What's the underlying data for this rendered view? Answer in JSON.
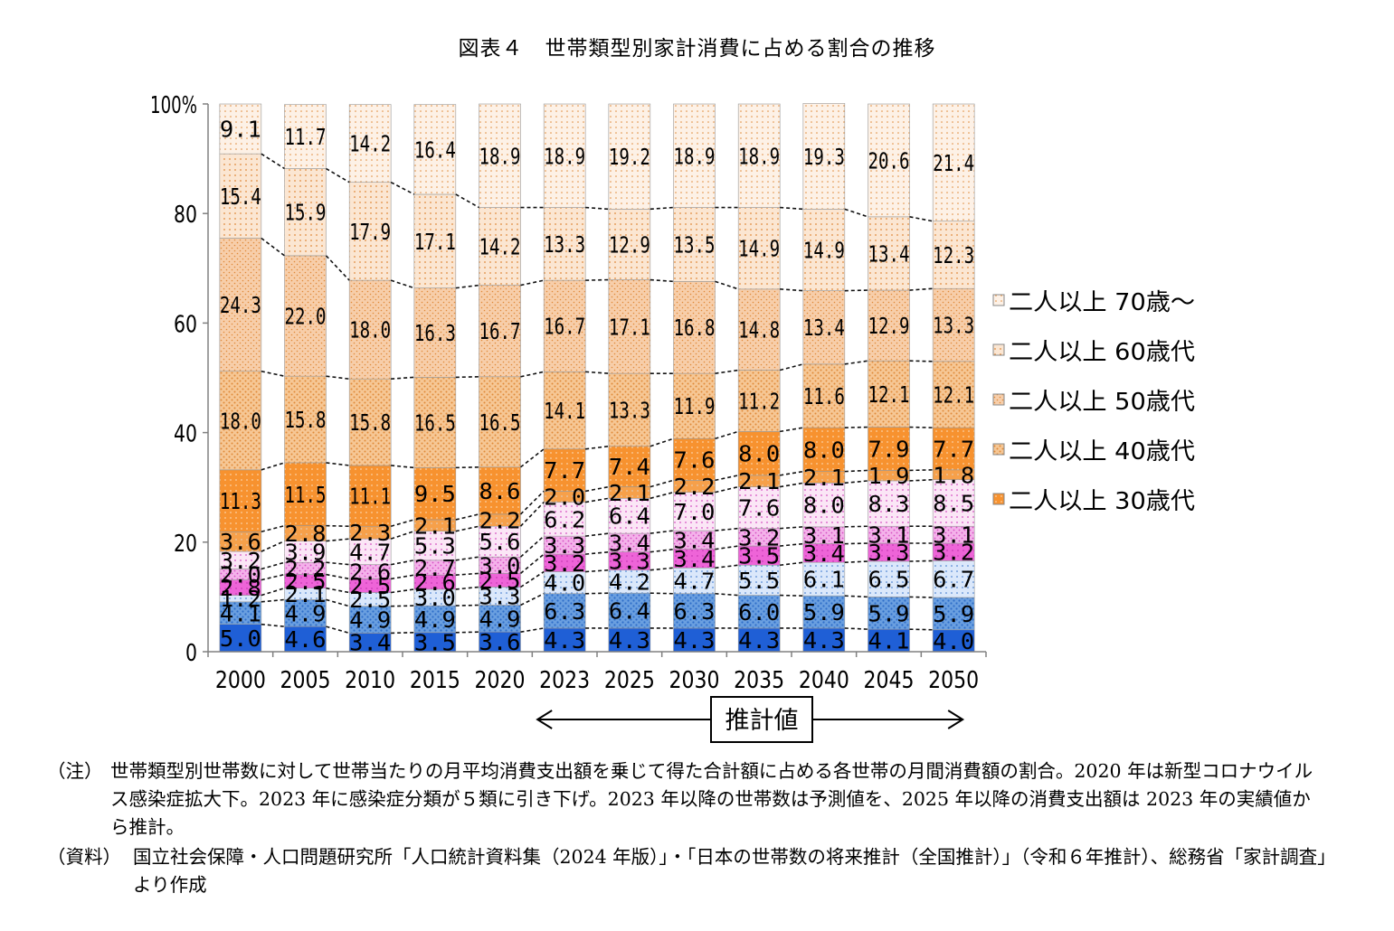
{
  "title": "図表４　世帯類型別家計消費に占める割合の推移",
  "chart_data": {
    "type": "bar",
    "stacked": true,
    "categories": [
      "2000",
      "2005",
      "2010",
      "2015",
      "2020",
      "2023",
      "2025",
      "2030",
      "2035",
      "2040",
      "2045",
      "2050"
    ],
    "y_ticks": [
      "0",
      "20",
      "40",
      "60",
      "80",
      "100%"
    ],
    "ylim": [
      0,
      100
    ],
    "series": [
      {
        "key": "s1",
        "values": [
          5.0,
          4.6,
          3.4,
          3.5,
          3.6,
          4.3,
          4.3,
          4.3,
          4.3,
          4.3,
          4.1,
          4.0
        ],
        "labels": [
          "5.0",
          "4.6",
          "3.4",
          "3.5",
          "3.6",
          "4.3",
          "4.3",
          "4.3",
          "4.3",
          "4.3",
          "4.1",
          "4.0"
        ],
        "color": "#1f5fd6"
      },
      {
        "key": "s2",
        "values": [
          4.1,
          4.9,
          4.9,
          4.9,
          4.9,
          6.3,
          6.4,
          6.3,
          6.0,
          5.9,
          5.9,
          5.9
        ],
        "labels": [
          "4.1",
          "4.9",
          "4.9",
          "4.9",
          "4.9",
          "6.3",
          "6.4",
          "6.3",
          "6.0",
          "5.9",
          "5.9",
          "5.9"
        ],
        "color": "#6a9fe0"
      },
      {
        "key": "s3",
        "values": [
          1.2,
          2.1,
          2.5,
          3.0,
          3.3,
          4.0,
          4.2,
          4.7,
          5.5,
          6.1,
          6.5,
          6.7
        ],
        "labels": [
          "1.2",
          "2.1",
          "2.5",
          "3.0",
          "3.3",
          "4.0",
          "4.2",
          "4.7",
          "5.5",
          "6.1",
          "6.5",
          "6.7"
        ],
        "color": "#dbe8fb"
      },
      {
        "key": "s4",
        "values": [
          2.8,
          2.5,
          2.5,
          2.6,
          2.5,
          3.2,
          3.3,
          3.4,
          3.5,
          3.4,
          3.3,
          3.2
        ],
        "labels": [
          "2.8",
          "2.5",
          "2.5",
          "2.6",
          "2.5",
          "3.2",
          "3.3",
          "3.4",
          "3.5",
          "3.4",
          "3.3",
          "3.2"
        ],
        "color": "#ee64d8"
      },
      {
        "key": "s5",
        "values": [
          2.0,
          2.2,
          2.6,
          2.7,
          3.0,
          3.3,
          3.4,
          3.4,
          3.2,
          3.1,
          3.1,
          3.1
        ],
        "labels": [
          "2.0",
          "2.2",
          "2.6",
          "2.7",
          "3.0",
          "3.3",
          "3.4",
          "3.4",
          "3.2",
          "3.1",
          "3.1",
          "3.1"
        ],
        "color": "#f4b2ea"
      },
      {
        "key": "s6",
        "values": [
          3.2,
          3.9,
          4.7,
          5.3,
          5.6,
          6.2,
          6.4,
          7.0,
          7.6,
          8.0,
          8.3,
          8.5
        ],
        "labels": [
          "3.2",
          "3.9",
          "4.7",
          "5.3",
          "5.6",
          "6.2",
          "6.4",
          "7.0",
          "7.6",
          "8.0",
          "8.3",
          "8.5"
        ],
        "color": "#fbe6f6"
      },
      {
        "key": "s7",
        "values": [
          3.6,
          2.8,
          2.3,
          2.1,
          2.2,
          2.0,
          2.1,
          2.2,
          2.1,
          2.1,
          1.9,
          1.8
        ],
        "labels": [
          "3.6",
          "2.8",
          "2.3",
          "2.1",
          "2.2",
          "2.0",
          "2.1",
          "2.2",
          "2.1",
          "2.1",
          "1.9",
          "1.8"
        ],
        "color": "#f6a04a"
      },
      {
        "key": "s8",
        "values": [
          11.3,
          11.5,
          11.1,
          9.5,
          8.6,
          7.7,
          7.4,
          7.6,
          8.0,
          8.0,
          7.9,
          7.7
        ],
        "labels": [
          "11.3",
          "11.5",
          "11.1",
          "9.5",
          "8.6",
          "7.7",
          "7.4",
          "7.6",
          "8.0",
          "8.0",
          "7.9",
          "7.7"
        ],
        "color": "#f7922f",
        "name": "二人以上 30歳代",
        "dense": true
      },
      {
        "key": "s9",
        "values": [
          18.0,
          15.8,
          15.8,
          16.5,
          16.5,
          14.1,
          13.3,
          11.9,
          11.2,
          11.6,
          12.1,
          12.1
        ],
        "labels": [
          "18.0",
          "15.8",
          "15.8",
          "16.5",
          "16.5",
          "14.1",
          "13.3",
          "11.9",
          "11.2",
          "11.6",
          "12.1",
          "12.1"
        ],
        "color": "#f6c795",
        "name": "二人以上 40歳代"
      },
      {
        "key": "s10",
        "values": [
          24.3,
          22.0,
          18.0,
          16.3,
          16.7,
          16.7,
          17.1,
          16.8,
          14.8,
          13.4,
          12.9,
          13.3
        ],
        "labels": [
          "24.3",
          "22.0",
          "18.0",
          "16.3",
          "16.7",
          "16.7",
          "17.1",
          "16.8",
          "14.8",
          "13.4",
          "12.9",
          "13.3"
        ],
        "color": "#f7ceaa",
        "name": "二人以上 50歳代"
      },
      {
        "key": "s11",
        "values": [
          15.4,
          15.9,
          17.9,
          17.1,
          14.2,
          13.3,
          12.9,
          13.5,
          14.9,
          14.9,
          13.4,
          12.3
        ],
        "labels": [
          "15.4",
          "15.9",
          "17.9",
          "17.1",
          "14.2",
          "13.3",
          "12.9",
          "13.5",
          "14.9",
          "14.9",
          "13.4",
          "12.3"
        ],
        "color": "#fbe6d2",
        "name": "二人以上 60歳代"
      },
      {
        "key": "s12",
        "values": [
          9.1,
          11.7,
          14.2,
          16.4,
          18.9,
          18.9,
          19.2,
          18.9,
          18.9,
          19.3,
          20.6,
          21.4
        ],
        "labels": [
          "9.1",
          "11.7",
          "14.2",
          "16.4",
          "18.9",
          "18.9",
          "19.2",
          "18.9",
          "18.9",
          "19.3",
          "20.6",
          "21.4"
        ],
        "color": "#fdf1e6",
        "name": "二人以上 70歳～"
      }
    ],
    "legend": [
      "二人以上 70歳～",
      "二人以上 60歳代",
      "二人以上 50歳代",
      "二人以上 40歳代",
      "二人以上 30歳代"
    ],
    "legend_position": "right",
    "annotation": "推計値",
    "annotation_range": [
      "2023",
      "2050"
    ]
  },
  "notes": [
    {
      "tag": "（注）",
      "text": "世帯類型別世帯数に対して世帯当たりの月平均消費支出額を乗じて得た合計額に占める各世帯の月間消費額の割合。2020 年は新型コロナウイルス感染症拡大下。2023 年に感染症分類が５類に引き下げ。2023 年以降の世帯数は予測値を、2025 年以降の消費支出額は 2023 年の実績値から推計。"
    },
    {
      "tag": "（資料）",
      "text": "国立社会保障・人口問題研究所「人口統計資料集（2024 年版）」・「日本の世帯数の将来推計（全国推計）」（令和６年推計）、総務省「家計調査」より作成"
    }
  ]
}
